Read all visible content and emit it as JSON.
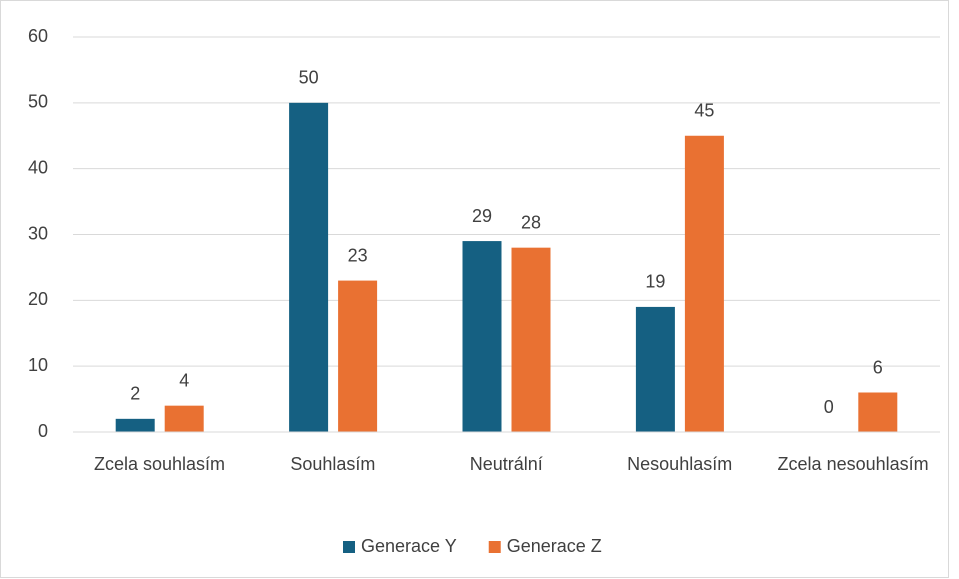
{
  "chart_data": {
    "type": "bar",
    "categories": [
      "Zcela souhlasím",
      "Souhlasím",
      "Neutrální",
      "Nesouhlasím",
      "Zcela nesouhlasím"
    ],
    "series": [
      {
        "name": "Generace Y",
        "color": "#156082",
        "values": [
          2,
          50,
          29,
          19,
          0
        ]
      },
      {
        "name": "Generace Z",
        "color": "#e97132",
        "values": [
          4,
          23,
          28,
          45,
          6
        ]
      }
    ],
    "ylim": [
      0,
      60
    ],
    "yticks": [
      0,
      10,
      20,
      30,
      40,
      50,
      60
    ],
    "grid": true,
    "legend": "bottom"
  }
}
